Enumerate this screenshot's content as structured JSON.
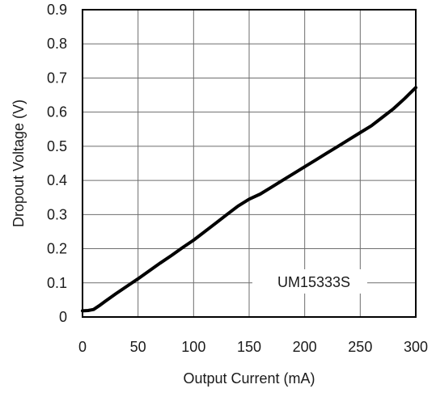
{
  "chart_data": {
    "type": "line",
    "title": "",
    "xlabel": "Output Current (mA)",
    "ylabel": "Dropout Voltage (V)",
    "xlim": [
      0,
      300
    ],
    "ylim": [
      0,
      0.9
    ],
    "x_ticks": [
      0,
      50,
      100,
      150,
      200,
      250,
      300
    ],
    "y_ticks": [
      0,
      0.1,
      0.2,
      0.3,
      0.4,
      0.5,
      0.6,
      0.7,
      0.8,
      0.9
    ],
    "x_tick_labels": [
      "0",
      "50",
      "100",
      "150",
      "200",
      "250",
      "300"
    ],
    "y_tick_labels": [
      "0",
      "0.1",
      "0.2",
      "0.3",
      "0.4",
      "0.5",
      "0.6",
      "0.7",
      "0.8",
      "0.9"
    ],
    "grid": true,
    "annotation": "UM15333S",
    "series": [
      {
        "x": [
          0,
          5,
          10,
          15,
          20,
          30,
          40,
          50,
          60,
          70,
          80,
          90,
          100,
          110,
          120,
          130,
          140,
          150,
          160,
          170,
          180,
          190,
          200,
          210,
          220,
          230,
          240,
          250,
          260,
          270,
          280,
          290,
          300
        ],
        "values": [
          0.018,
          0.019,
          0.022,
          0.033,
          0.045,
          0.068,
          0.09,
          0.112,
          0.135,
          0.158,
          0.18,
          0.203,
          0.225,
          0.25,
          0.275,
          0.3,
          0.325,
          0.345,
          0.36,
          0.38,
          0.4,
          0.42,
          0.44,
          0.46,
          0.48,
          0.5,
          0.52,
          0.54,
          0.56,
          0.585,
          0.61,
          0.64,
          0.672
        ],
        "color": "#000000"
      }
    ]
  }
}
